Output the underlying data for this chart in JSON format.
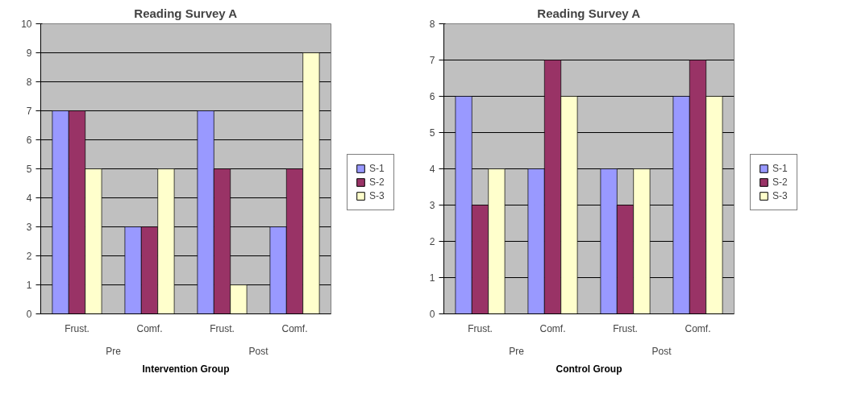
{
  "chart_data": [
    {
      "type": "bar",
      "title": "Reading Survey A",
      "xlabel": "Intervention Group",
      "categories": [
        "Frust.",
        "Comf.",
        "Frust.",
        "Comf."
      ],
      "annotations": [
        "Pre",
        "Post"
      ],
      "series": [
        {
          "name": "S-1",
          "color": "#9999ff",
          "values": [
            7,
            3,
            7,
            3
          ]
        },
        {
          "name": "S-2",
          "color": "#993366",
          "values": [
            7,
            3,
            5,
            5
          ]
        },
        {
          "name": "S-3",
          "color": "#ffffcc",
          "values": [
            5,
            5,
            1,
            9
          ]
        }
      ],
      "ylim": [
        0,
        10
      ],
      "yticks": [
        0,
        1,
        2,
        3,
        4,
        5,
        6,
        7,
        8,
        9,
        10
      ],
      "grid": "y",
      "legend": "right"
    },
    {
      "type": "bar",
      "title": "Reading Survey A",
      "xlabel": "Control Group",
      "categories": [
        "Frust.",
        "Comf.",
        "Frust.",
        "Comf."
      ],
      "annotations": [
        "Pre",
        "Post"
      ],
      "series": [
        {
          "name": "S-1",
          "color": "#9999ff",
          "values": [
            6,
            4,
            4,
            6
          ]
        },
        {
          "name": "S-2",
          "color": "#993366",
          "values": [
            3,
            7,
            3,
            7
          ]
        },
        {
          "name": "S-3",
          "color": "#ffffcc",
          "values": [
            4,
            6,
            4,
            6
          ]
        }
      ],
      "ylim": [
        0,
        8
      ],
      "yticks": [
        0,
        1,
        2,
        3,
        4,
        5,
        6,
        7,
        8
      ],
      "grid": "y",
      "legend": "right"
    }
  ]
}
